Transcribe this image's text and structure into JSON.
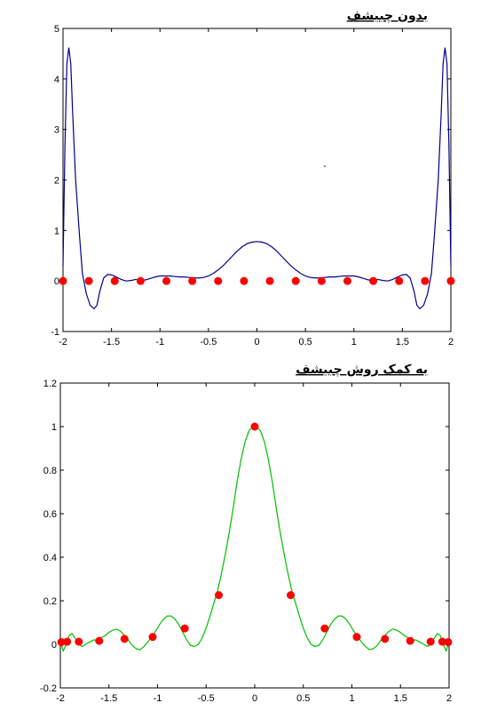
{
  "chart_data": [
    {
      "type": "line",
      "title": "بدون چبیشف",
      "xlim": [
        -2,
        2
      ],
      "ylim": [
        -1,
        5
      ],
      "xticks": [
        -2,
        -1.5,
        -1,
        -0.5,
        0,
        0.5,
        1,
        1.5,
        2
      ],
      "xtick_labels": [
        "-2",
        "-1.5",
        "-1",
        "-0.5",
        "0",
        "0.5",
        "1",
        "1.5",
        "2"
      ],
      "yticks": [
        -1,
        0,
        1,
        2,
        3,
        4,
        5
      ],
      "ytick_labels": [
        "-1",
        "0",
        "1",
        "2",
        "3",
        "4",
        "5"
      ],
      "grid": false,
      "line_color": "#00008b",
      "marker_color": "#ff0000",
      "curve": {
        "x": [
          -2,
          -1.98,
          -1.96,
          -1.94,
          -1.92,
          -1.9,
          -1.87,
          -1.83,
          -1.8,
          -1.76,
          -1.72,
          -1.68,
          -1.65,
          -1.62,
          -1.58,
          -1.54,
          -1.5,
          -1.45,
          -1.4,
          -1.35,
          -1.3,
          -1.25,
          -1.2,
          -1.15,
          -1.1,
          -1.05,
          -1.0,
          -0.95,
          -0.9,
          -0.85,
          -0.8,
          -0.75,
          -0.7,
          -0.65,
          -0.6,
          -0.55,
          -0.5,
          -0.45,
          -0.4,
          -0.35,
          -0.3,
          -0.25,
          -0.2,
          -0.15,
          -0.1,
          -0.05,
          0
        ],
        "y": [
          0.3,
          2.7,
          4.3,
          4.62,
          4.3,
          3.3,
          2.0,
          0.9,
          0.15,
          -0.25,
          -0.48,
          -0.55,
          -0.48,
          -0.2,
          0.06,
          0.13,
          0.12,
          0.08,
          0.03,
          0.0,
          0.01,
          0.03,
          0.02,
          0.02,
          0.05,
          0.08,
          0.1,
          0.1,
          0.1,
          0.09,
          0.08,
          0.08,
          0.07,
          0.06,
          0.06,
          0.07,
          0.1,
          0.15,
          0.22,
          0.3,
          0.4,
          0.5,
          0.6,
          0.68,
          0.74,
          0.77,
          0.78
        ]
      },
      "points": {
        "x": [
          -2,
          -1.7333,
          -1.4667,
          -1.2,
          -0.9333,
          -0.6667,
          -0.4,
          -0.1333,
          0.1333,
          0.4,
          0.6667,
          0.9333,
          1.2,
          1.4667,
          1.7333,
          2
        ],
        "y": [
          0.0,
          0.0,
          0.0,
          0.0,
          0.0,
          0.0,
          0.0,
          0.0,
          0.0,
          0.0,
          0.0,
          0.0,
          0.0,
          0.0,
          0.0,
          0.0
        ]
      }
    },
    {
      "type": "line",
      "title": "به کمک روش چبیشف",
      "xlim": [
        -2,
        2
      ],
      "ylim": [
        -0.2,
        1.2
      ],
      "xticks": [
        -2,
        -1.5,
        -1,
        -0.5,
        0,
        0.5,
        1,
        1.5,
        2
      ],
      "xtick_labels": [
        "-2",
        "-1.5",
        "-1",
        "-0.5",
        "0",
        "0.5",
        "1",
        "1.5",
        "2"
      ],
      "yticks": [
        -0.2,
        0,
        0.2,
        0.4,
        0.6,
        0.8,
        1,
        1.2
      ],
      "ytick_labels": [
        "-0.2",
        "0",
        "0.2",
        "0.4",
        "0.6",
        "0.8",
        "1",
        "1.2"
      ],
      "grid": false,
      "line_color": "#00c000",
      "marker_color": "#ff0000",
      "curve": {
        "x": [
          -2,
          -1.97,
          -1.94,
          -1.91,
          -1.88,
          -1.85,
          -1.82,
          -1.78,
          -1.74,
          -1.7,
          -1.66,
          -1.62,
          -1.58,
          -1.54,
          -1.5,
          -1.46,
          -1.42,
          -1.38,
          -1.34,
          -1.3,
          -1.26,
          -1.22,
          -1.18,
          -1.14,
          -1.1,
          -1.06,
          -1.02,
          -0.98,
          -0.94,
          -0.9,
          -0.86,
          -0.82,
          -0.78,
          -0.74,
          -0.7,
          -0.66,
          -0.62,
          -0.58,
          -0.54,
          -0.5,
          -0.46,
          -0.42,
          -0.38,
          -0.34,
          -0.3,
          -0.26,
          -0.22,
          -0.18,
          -0.14,
          -0.1,
          -0.06,
          -0.03,
          0
        ],
        "y": [
          0.01,
          -0.03,
          0.0,
          0.04,
          0.05,
          0.03,
          0.01,
          -0.01,
          0.0,
          0.01,
          0.02,
          0.02,
          0.03,
          0.04,
          0.055,
          0.065,
          0.07,
          0.06,
          0.04,
          0.02,
          -0.005,
          -0.02,
          -0.025,
          -0.01,
          0.01,
          0.035,
          0.06,
          0.09,
          0.115,
          0.13,
          0.13,
          0.115,
          0.09,
          0.055,
          0.02,
          -0.005,
          -0.01,
          0.0,
          0.03,
          0.075,
          0.13,
          0.19,
          0.25,
          0.33,
          0.42,
          0.52,
          0.63,
          0.75,
          0.85,
          0.93,
          0.98,
          0.995,
          1.0
        ]
      },
      "points": {
        "x": [
          -1.99,
          -1.93,
          -1.81,
          -1.6,
          -1.34,
          -1.05,
          -0.72,
          -0.37,
          0,
          0.37,
          0.72,
          1.05,
          1.34,
          1.6,
          1.81,
          1.93,
          1.99
        ],
        "y": [
          0.01,
          0.012,
          0.012,
          0.016,
          0.025,
          0.034,
          0.073,
          0.226,
          1.0,
          0.226,
          0.073,
          0.034,
          0.025,
          0.016,
          0.012,
          0.012,
          0.01
        ]
      }
    }
  ]
}
